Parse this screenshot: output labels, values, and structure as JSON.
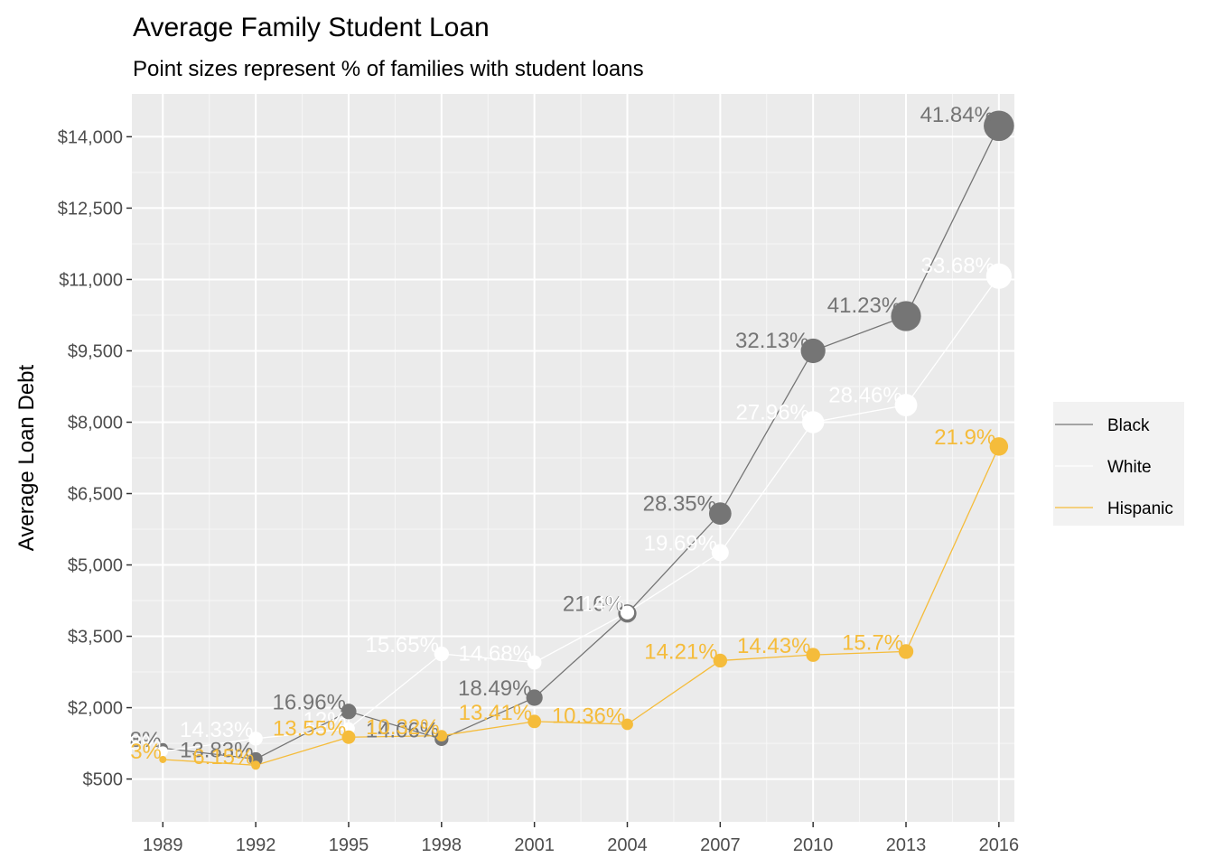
{
  "chart_data": {
    "type": "line",
    "title": "Average Family Student Loan",
    "subtitle": "Point sizes represent % of families with student loans",
    "ylabel": "Average Loan Debt",
    "xlabel": "",
    "x": [
      1989,
      1992,
      1995,
      1998,
      2001,
      2004,
      2007,
      2010,
      2013,
      2016
    ],
    "x_tick_labels": [
      "1989",
      "1992",
      "1995",
      "1998",
      "2001",
      "2004",
      "2007",
      "2010",
      "2013",
      "2016"
    ],
    "y_ticks": [
      500,
      2000,
      3500,
      5000,
      6500,
      8000,
      9500,
      11000,
      12500,
      14000
    ],
    "y_tick_labels": [
      "$500",
      "$2,000",
      "$3,500",
      "$5,000",
      "$6,500",
      "$8,000",
      "$9,500",
      "$11,000",
      "$12,500",
      "$14,000"
    ],
    "xlim": [
      1988,
      2016.5
    ],
    "ylim": [
      -400,
      14900
    ],
    "grid": true,
    "legend_position": "right",
    "series": [
      {
        "name": "Black",
        "color": "#757575",
        "values": [
          1150,
          920,
          1920,
          1340,
          2210,
          3980,
          6080,
          9500,
          10230,
          14230
        ],
        "sizes": [
          8.0,
          13.83,
          16.96,
          14.06,
          18.49,
          21.6,
          28.35,
          32.13,
          41.23,
          41.84
        ],
        "labels": [
          "8%",
          "13.83%",
          "16.96%",
          "14.06%",
          "18.49%",
          "21.6%",
          "28.35%",
          "32.13%",
          "41.23%",
          "41.84%"
        ]
      },
      {
        "name": "White",
        "color": "#ffffff",
        "values": [
          1080,
          1350,
          1560,
          3130,
          2950,
          4000,
          5260,
          8000,
          8360,
          11070
        ],
        "sizes": [
          8.0,
          14.33,
          12.0,
          15.65,
          14.68,
          14.0,
          19.69,
          27.96,
          28.46,
          33.68
        ],
        "labels": [
          "8%",
          "14.33%",
          "12%",
          "15.65%",
          "14.68%",
          "14%",
          "19.69%",
          "27.96%",
          "28.46%",
          "33.68%"
        ]
      },
      {
        "name": "Hispanic",
        "color": "#f5bc3b",
        "values": [
          910,
          790,
          1380,
          1410,
          1710,
          1650,
          2990,
          3110,
          3180,
          7490
        ],
        "sizes": [
          3.0,
          6.15,
          13.55,
          10.32,
          13.41,
          10.36,
          14.21,
          14.43,
          15.7,
          21.9
        ],
        "labels": [
          "3%",
          "6.15%",
          "13.55%",
          "10.32%",
          "13.41%",
          "10.36%",
          "14.21%",
          "14.43%",
          "15.7%",
          "21.9%"
        ]
      }
    ]
  }
}
